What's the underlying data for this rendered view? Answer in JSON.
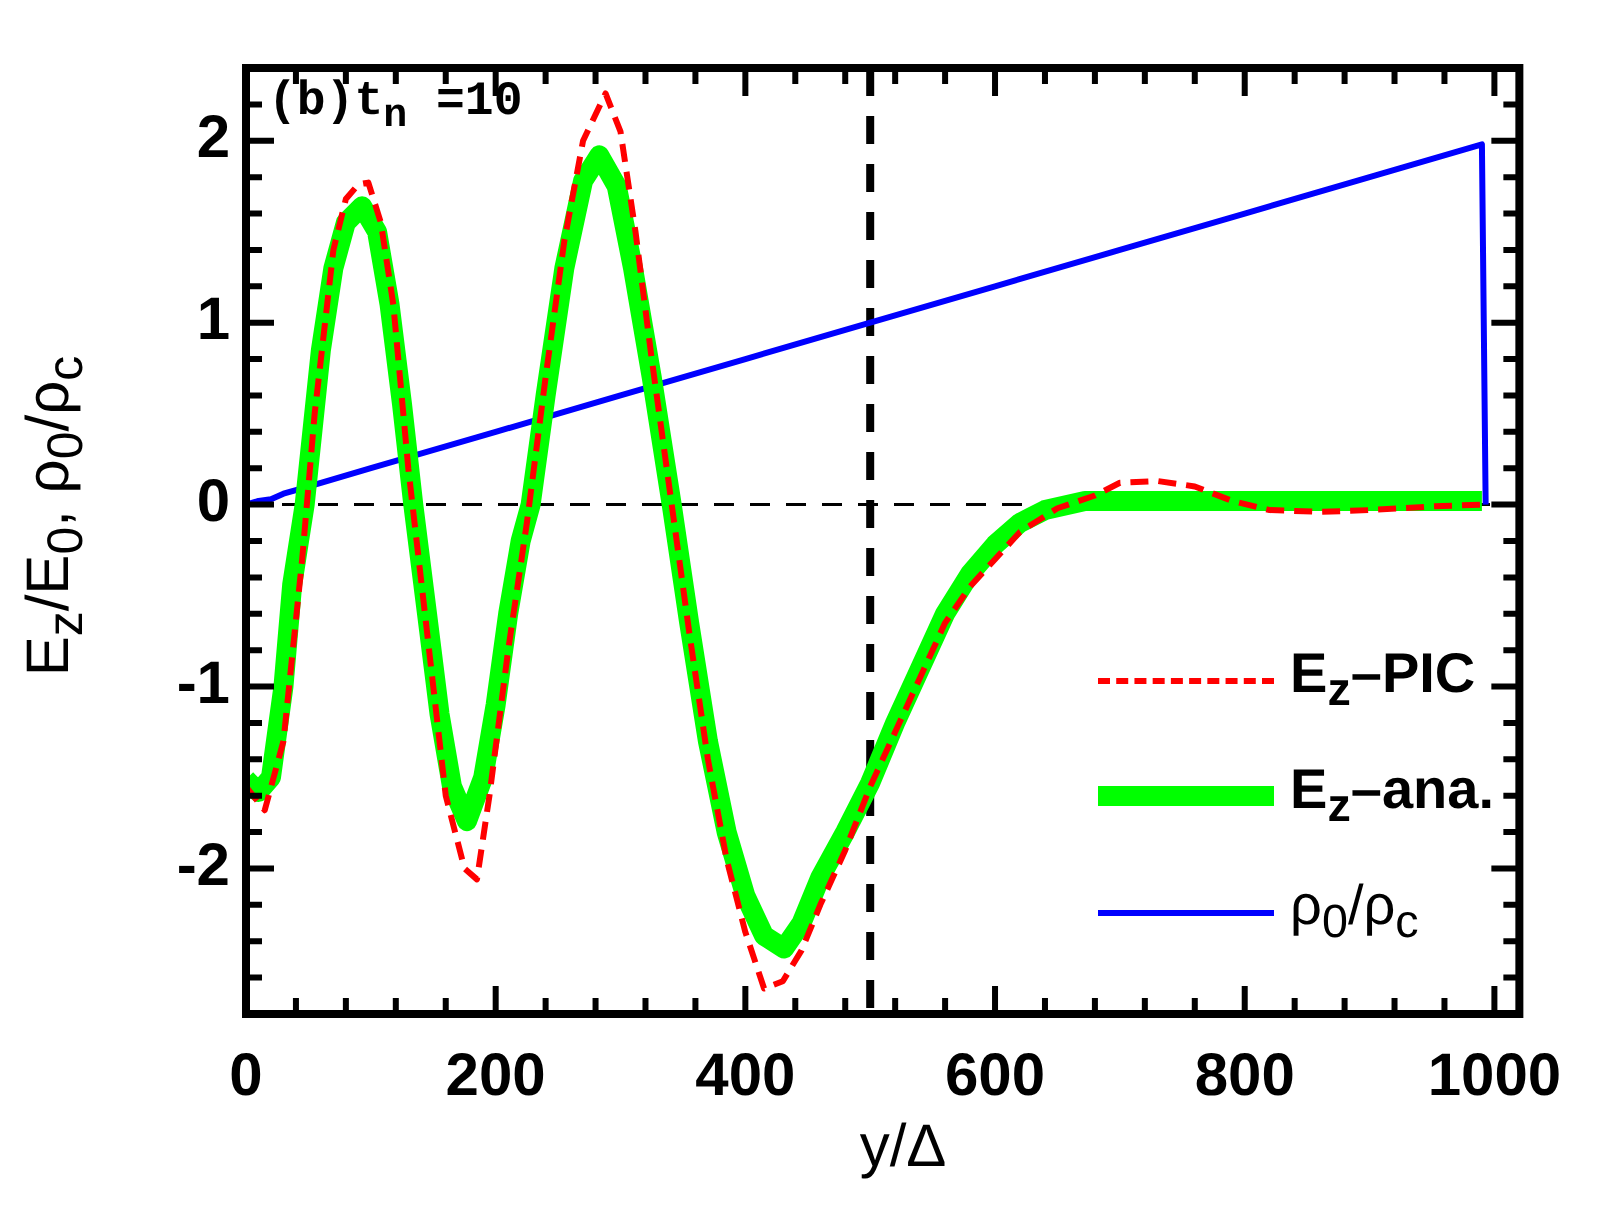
{
  "chart_data": {
    "type": "line",
    "xlabel": "y/Δ",
    "ylabel": "E$_{z}$/E$_{0}$, ρ$_{0}$/ρ$_{c}$",
    "annotations": [
      "(b)t$_{n}$ =10"
    ],
    "series": [
      {
        "name": "E$_{z}$–PIC",
        "color": "#ff0000",
        "line_style": "dashed",
        "x": [
          0,
          15,
          30,
          45,
          55,
          70,
          80,
          90,
          98,
          108,
          118,
          130,
          145,
          160,
          175,
          185,
          195,
          210,
          225,
          240,
          255,
          270,
          288,
          300,
          312,
          325,
          340,
          355,
          370,
          385,
          400,
          415,
          430,
          445,
          460,
          480,
          500,
          520,
          540,
          560,
          580,
          600,
          620,
          650,
          680,
          700,
          730,
          760,
          790,
          820,
          860,
          900,
          950,
          990
        ],
        "values": [
          -1.55,
          -1.68,
          -1.3,
          -0.3,
          0.5,
          1.4,
          1.68,
          1.76,
          1.77,
          1.55,
          1.1,
          0.2,
          -0.7,
          -1.6,
          -2.0,
          -2.06,
          -1.6,
          -0.8,
          -0.1,
          0.7,
          1.45,
          2.0,
          2.26,
          2.05,
          1.5,
          0.8,
          0.05,
          -0.7,
          -1.4,
          -1.95,
          -2.35,
          -2.66,
          -2.62,
          -2.45,
          -2.2,
          -1.9,
          -1.55,
          -1.25,
          -0.95,
          -0.65,
          -0.45,
          -0.3,
          -0.15,
          -0.02,
          0.05,
          0.12,
          0.13,
          0.1,
          0.02,
          -0.03,
          -0.04,
          -0.03,
          -0.01,
          0
        ]
      },
      {
        "name": "E$_{z}$–ana.",
        "color": "#00ff00",
        "line_style": "solid",
        "x": [
          0,
          10,
          20,
          30,
          37,
          47,
          60,
          70,
          80,
          93,
          105,
          115,
          125,
          134,
          145,
          155,
          165,
          177,
          190,
          200,
          210,
          220,
          228,
          240,
          255,
          270,
          283,
          297,
          310,
          325,
          341,
          355,
          370,
          385,
          400,
          415,
          431,
          445,
          460,
          480,
          500,
          520,
          540,
          560,
          580,
          600,
          620,
          640,
          672,
          720,
          800,
          900,
          990
        ],
        "values": [
          -1.51,
          -1.58,
          -1.5,
          -1.0,
          -0.44,
          0,
          0.85,
          1.3,
          1.55,
          1.64,
          1.5,
          1.1,
          0.55,
          0,
          -0.6,
          -1.15,
          -1.55,
          -1.74,
          -1.5,
          -1.1,
          -0.6,
          -0.2,
          0,
          0.6,
          1.3,
          1.78,
          1.92,
          1.75,
          1.3,
          0.7,
          0,
          -0.65,
          -1.3,
          -1.8,
          -2.15,
          -2.37,
          -2.44,
          -2.3,
          -2.05,
          -1.8,
          -1.53,
          -1.2,
          -0.9,
          -0.6,
          -0.38,
          -0.22,
          -0.1,
          -0.03,
          0.02,
          0.02,
          0.02,
          0.02,
          0.02
        ]
      },
      {
        "name": "ρ$_{0}$/ρ$_{c}$",
        "color": "#0000ff",
        "line_style": "solid",
        "x": [
          0,
          10,
          20,
          30,
          40,
          60,
          100,
          200,
          300,
          400,
          500,
          600,
          700,
          800,
          900,
          990,
          993
        ],
        "values": [
          0,
          0.02,
          0.03,
          0.06,
          0.08,
          0.12,
          0.2,
          0.4,
          0.6,
          0.8,
          1.0,
          1.2,
          1.4,
          1.6,
          1.8,
          1.98,
          0
        ]
      }
    ],
    "xlim": [
      0,
      1020
    ],
    "xticks": [
      0,
      {
        "value": 40,
        "label": null
      },
      {
        "value": 80,
        "label": null
      },
      {
        "value": 120,
        "label": null
      },
      {
        "value": 160,
        "label": null
      },
      200,
      {
        "value": 240,
        "label": null
      },
      {
        "value": 280,
        "label": null
      },
      {
        "value": 320,
        "label": null
      },
      {
        "value": 360,
        "label": null
      },
      400,
      {
        "value": 440,
        "label": null
      },
      {
        "value": 480,
        "label": null
      },
      {
        "value": 520,
        "label": null
      },
      {
        "value": 560,
        "label": null
      },
      600,
      {
        "value": 640,
        "label": null
      },
      {
        "value": 680,
        "label": null
      },
      {
        "value": 720,
        "label": null
      },
      {
        "value": 760,
        "label": null
      },
      800,
      {
        "value": 840,
        "label": null
      },
      {
        "value": 880,
        "label": null
      },
      {
        "value": 920,
        "label": null
      },
      {
        "value": 960,
        "label": null
      },
      1000
    ],
    "ylim": [
      -2.8,
      2.4
    ],
    "yticks": [
      {
        "value": -2.6,
        "label": null
      },
      {
        "value": -2.4,
        "label": null
      },
      {
        "value": -2.2,
        "label": null
      },
      -2,
      {
        "value": -1.8,
        "label": null
      },
      {
        "value": -1.6,
        "label": null
      },
      {
        "value": -1.4,
        "label": null
      },
      {
        "value": -1.2,
        "label": null
      },
      -1,
      {
        "value": -0.8,
        "label": null
      },
      {
        "value": -0.6,
        "label": null
      },
      {
        "value": -0.4,
        "label": null
      },
      {
        "value": -0.2,
        "label": null
      },
      0,
      {
        "value": 0.2,
        "label": null
      },
      {
        "value": 0.4,
        "label": null
      },
      {
        "value": 0.6,
        "label": null
      },
      {
        "value": 0.8,
        "label": null
      },
      1,
      {
        "value": 1.2,
        "label": null
      },
      {
        "value": 1.4,
        "label": null
      },
      {
        "value": 1.6,
        "label": null
      },
      {
        "value": 1.8,
        "label": null
      },
      2,
      {
        "value": 2.2,
        "label": null
      }
    ],
    "ref_lines": [
      {
        "axis": "x",
        "value": 500,
        "color": "#000000",
        "line_style": "dashed"
      },
      {
        "axis": "y",
        "value": 0,
        "color": "#000000",
        "line_style": "dashed"
      }
    ],
    "grid": false,
    "legend": "bottom right",
    "marker": "none"
  }
}
